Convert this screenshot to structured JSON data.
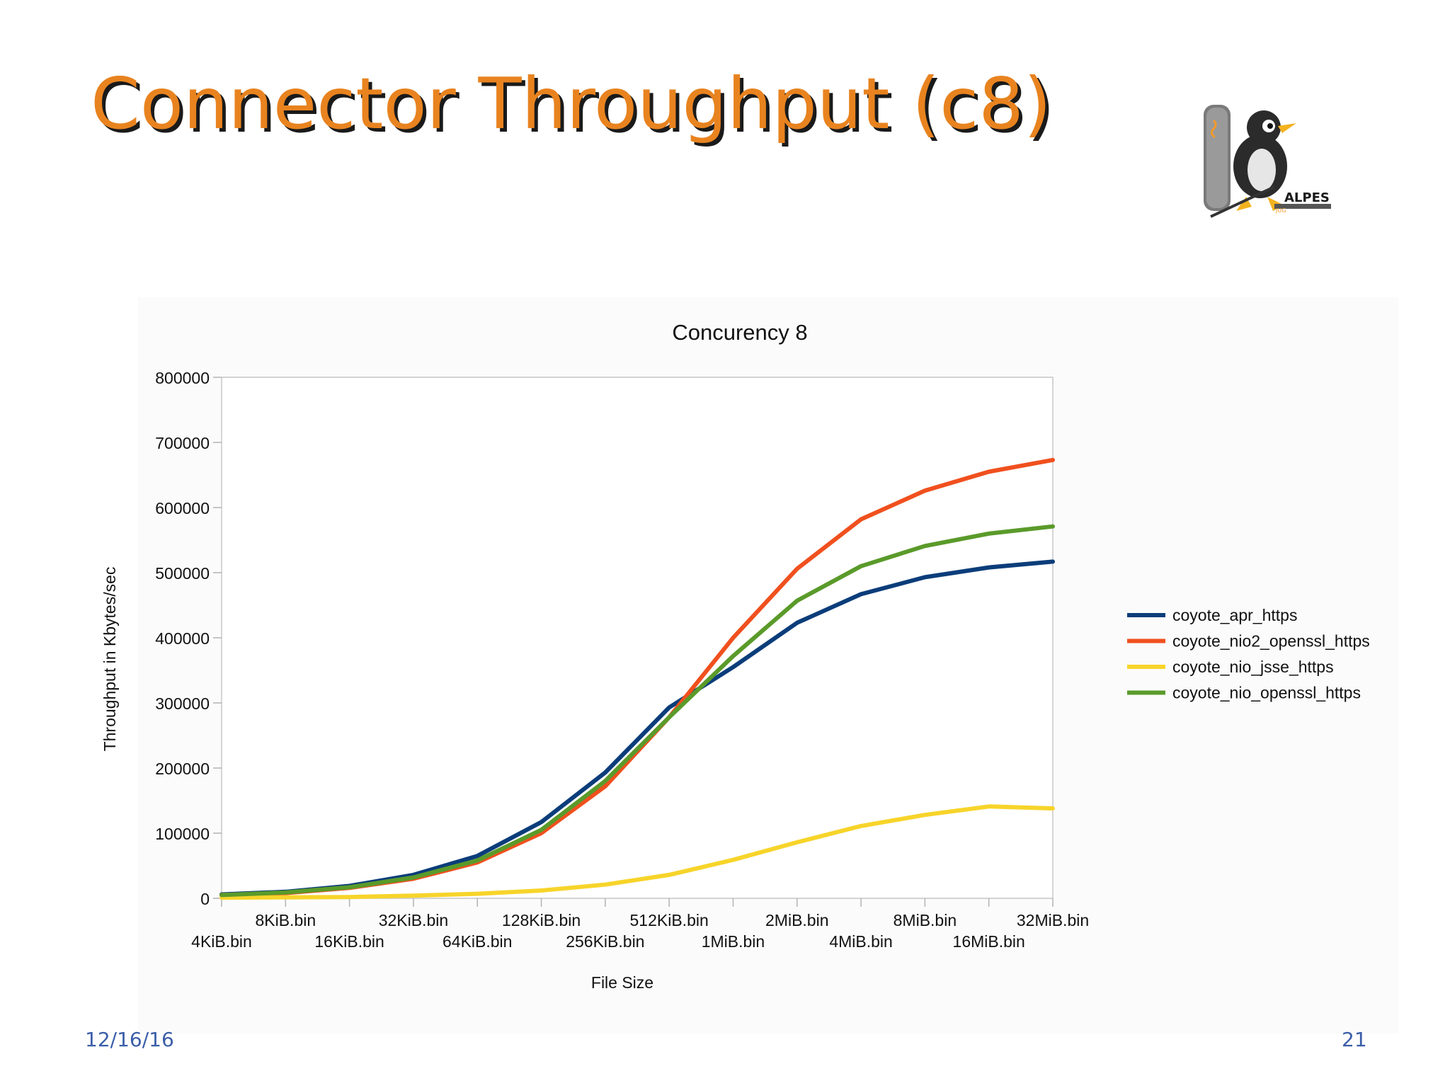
{
  "slide": {
    "title": "Connector Throughput (c8)",
    "date": "12/16/16",
    "page_number": "21",
    "logo_text": "ALPES",
    "logo_subtext": "JUG"
  },
  "chart_data": {
    "type": "line",
    "title": "Concurency 8",
    "xlabel": "File Size",
    "ylabel": "Throughput in Kbytes/sec",
    "ylim": [
      0,
      800000
    ],
    "yticks": [
      "0",
      "100000",
      "200000",
      "300000",
      "400000",
      "500000",
      "600000",
      "700000",
      "800000"
    ],
    "grid": true,
    "legend_position": "right",
    "categories": [
      "4KiB.bin",
      "8KiB.bin",
      "16KiB.bin",
      "32KiB.bin",
      "64KiB.bin",
      "128KiB.bin",
      "256KiB.bin",
      "512KiB.bin",
      "1MiB.bin",
      "2MiB.bin",
      "4MiB.bin",
      "8MiB.bin",
      "16MiB.bin",
      "32MiB.bin"
    ],
    "series": [
      {
        "name": "coyote_apr_https",
        "color": "#0b3d7a",
        "values": [
          6000,
          10000,
          19000,
          36000,
          65000,
          117000,
          193000,
          293000,
          355000,
          423000,
          467000,
          493000,
          508000,
          517000
        ]
      },
      {
        "name": "coyote_nio2_openssl_https",
        "color": "#f0501e",
        "values": [
          5000,
          8000,
          16000,
          30000,
          55000,
          100000,
          172000,
          278000,
          400000,
          506000,
          582000,
          626000,
          655000,
          673000
        ]
      },
      {
        "name": "coyote_nio_jsse_https",
        "color": "#f7d42a",
        "values": [
          1000,
          1500,
          2000,
          4000,
          7000,
          12000,
          21000,
          36000,
          59000,
          86000,
          111000,
          128000,
          141000,
          138000
        ]
      },
      {
        "name": "coyote_nio_openssl_https",
        "color": "#5a9a2a",
        "values": [
          5000,
          9000,
          17000,
          32000,
          58000,
          105000,
          180000,
          278000,
          372000,
          457000,
          510000,
          541000,
          560000,
          571000
        ]
      }
    ]
  }
}
